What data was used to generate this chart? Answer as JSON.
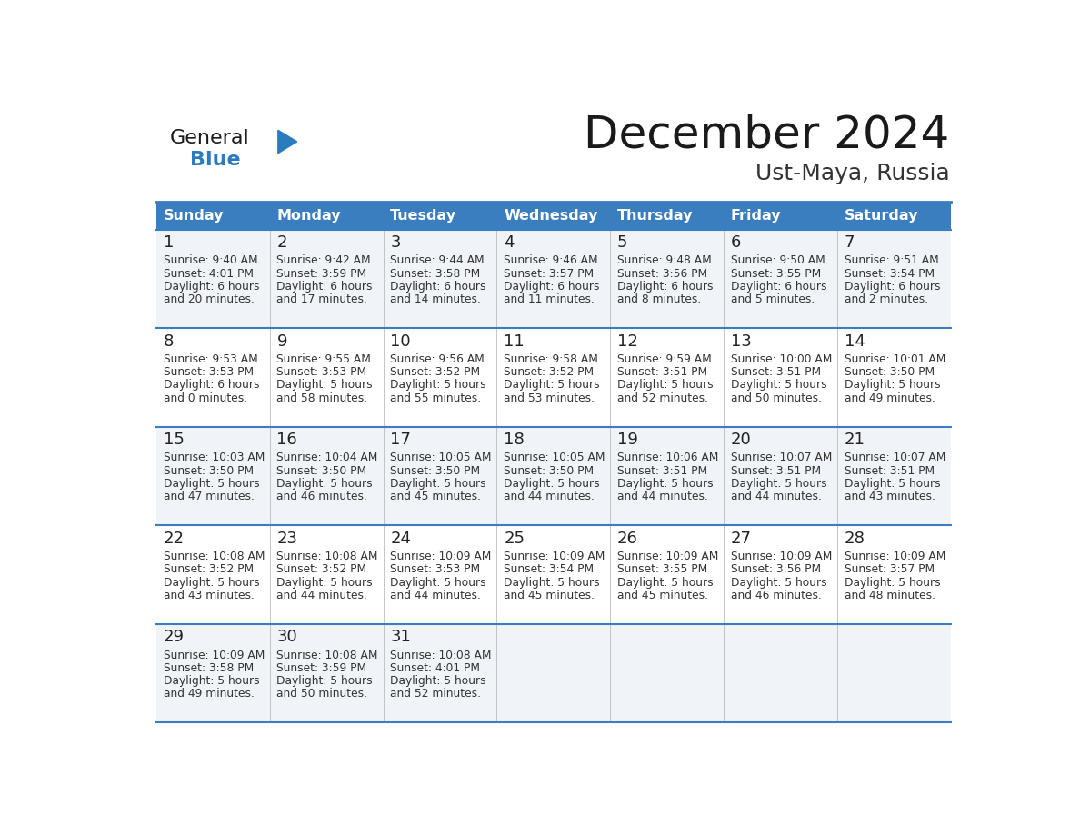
{
  "title": "December 2024",
  "subtitle": "Ust-Maya, Russia",
  "days_of_week": [
    "Sunday",
    "Monday",
    "Tuesday",
    "Wednesday",
    "Thursday",
    "Friday",
    "Saturday"
  ],
  "header_bg_color": "#3a7ebf",
  "header_text_color": "#ffffff",
  "row_line_color": "#3a7ebf",
  "title_color": "#1a1a1a",
  "subtitle_color": "#333333",
  "day_number_color": "#222222",
  "cell_text_color": "#333333",
  "row_bg_colors": [
    "#f0f4f8",
    "#ffffff",
    "#f0f4f8",
    "#ffffff",
    "#f0f4f8"
  ],
  "calendar_data": [
    [
      {
        "day": 1,
        "sunrise": "9:40 AM",
        "sunset": "4:01 PM",
        "daylight_hours": 6,
        "daylight_minutes": 20
      },
      {
        "day": 2,
        "sunrise": "9:42 AM",
        "sunset": "3:59 PM",
        "daylight_hours": 6,
        "daylight_minutes": 17
      },
      {
        "day": 3,
        "sunrise": "9:44 AM",
        "sunset": "3:58 PM",
        "daylight_hours": 6,
        "daylight_minutes": 14
      },
      {
        "day": 4,
        "sunrise": "9:46 AM",
        "sunset": "3:57 PM",
        "daylight_hours": 6,
        "daylight_minutes": 11
      },
      {
        "day": 5,
        "sunrise": "9:48 AM",
        "sunset": "3:56 PM",
        "daylight_hours": 6,
        "daylight_minutes": 8
      },
      {
        "day": 6,
        "sunrise": "9:50 AM",
        "sunset": "3:55 PM",
        "daylight_hours": 6,
        "daylight_minutes": 5
      },
      {
        "day": 7,
        "sunrise": "9:51 AM",
        "sunset": "3:54 PM",
        "daylight_hours": 6,
        "daylight_minutes": 2
      }
    ],
    [
      {
        "day": 8,
        "sunrise": "9:53 AM",
        "sunset": "3:53 PM",
        "daylight_hours": 6,
        "daylight_minutes": 0
      },
      {
        "day": 9,
        "sunrise": "9:55 AM",
        "sunset": "3:53 PM",
        "daylight_hours": 5,
        "daylight_minutes": 58
      },
      {
        "day": 10,
        "sunrise": "9:56 AM",
        "sunset": "3:52 PM",
        "daylight_hours": 5,
        "daylight_minutes": 55
      },
      {
        "day": 11,
        "sunrise": "9:58 AM",
        "sunset": "3:52 PM",
        "daylight_hours": 5,
        "daylight_minutes": 53
      },
      {
        "day": 12,
        "sunrise": "9:59 AM",
        "sunset": "3:51 PM",
        "daylight_hours": 5,
        "daylight_minutes": 52
      },
      {
        "day": 13,
        "sunrise": "10:00 AM",
        "sunset": "3:51 PM",
        "daylight_hours": 5,
        "daylight_minutes": 50
      },
      {
        "day": 14,
        "sunrise": "10:01 AM",
        "sunset": "3:50 PM",
        "daylight_hours": 5,
        "daylight_minutes": 49
      }
    ],
    [
      {
        "day": 15,
        "sunrise": "10:03 AM",
        "sunset": "3:50 PM",
        "daylight_hours": 5,
        "daylight_minutes": 47
      },
      {
        "day": 16,
        "sunrise": "10:04 AM",
        "sunset": "3:50 PM",
        "daylight_hours": 5,
        "daylight_minutes": 46
      },
      {
        "day": 17,
        "sunrise": "10:05 AM",
        "sunset": "3:50 PM",
        "daylight_hours": 5,
        "daylight_minutes": 45
      },
      {
        "day": 18,
        "sunrise": "10:05 AM",
        "sunset": "3:50 PM",
        "daylight_hours": 5,
        "daylight_minutes": 44
      },
      {
        "day": 19,
        "sunrise": "10:06 AM",
        "sunset": "3:51 PM",
        "daylight_hours": 5,
        "daylight_minutes": 44
      },
      {
        "day": 20,
        "sunrise": "10:07 AM",
        "sunset": "3:51 PM",
        "daylight_hours": 5,
        "daylight_minutes": 44
      },
      {
        "day": 21,
        "sunrise": "10:07 AM",
        "sunset": "3:51 PM",
        "daylight_hours": 5,
        "daylight_minutes": 43
      }
    ],
    [
      {
        "day": 22,
        "sunrise": "10:08 AM",
        "sunset": "3:52 PM",
        "daylight_hours": 5,
        "daylight_minutes": 43
      },
      {
        "day": 23,
        "sunrise": "10:08 AM",
        "sunset": "3:52 PM",
        "daylight_hours": 5,
        "daylight_minutes": 44
      },
      {
        "day": 24,
        "sunrise": "10:09 AM",
        "sunset": "3:53 PM",
        "daylight_hours": 5,
        "daylight_minutes": 44
      },
      {
        "day": 25,
        "sunrise": "10:09 AM",
        "sunset": "3:54 PM",
        "daylight_hours": 5,
        "daylight_minutes": 45
      },
      {
        "day": 26,
        "sunrise": "10:09 AM",
        "sunset": "3:55 PM",
        "daylight_hours": 5,
        "daylight_minutes": 45
      },
      {
        "day": 27,
        "sunrise": "10:09 AM",
        "sunset": "3:56 PM",
        "daylight_hours": 5,
        "daylight_minutes": 46
      },
      {
        "day": 28,
        "sunrise": "10:09 AM",
        "sunset": "3:57 PM",
        "daylight_hours": 5,
        "daylight_minutes": 48
      }
    ],
    [
      {
        "day": 29,
        "sunrise": "10:09 AM",
        "sunset": "3:58 PM",
        "daylight_hours": 5,
        "daylight_minutes": 49
      },
      {
        "day": 30,
        "sunrise": "10:08 AM",
        "sunset": "3:59 PM",
        "daylight_hours": 5,
        "daylight_minutes": 50
      },
      {
        "day": 31,
        "sunrise": "10:08 AM",
        "sunset": "4:01 PM",
        "daylight_hours": 5,
        "daylight_minutes": 52
      },
      null,
      null,
      null,
      null
    ]
  ],
  "logo_general_color": "#1a1a1a",
  "logo_blue_color": "#2b7bbf",
  "logo_triangle_color": "#2b7bbf"
}
